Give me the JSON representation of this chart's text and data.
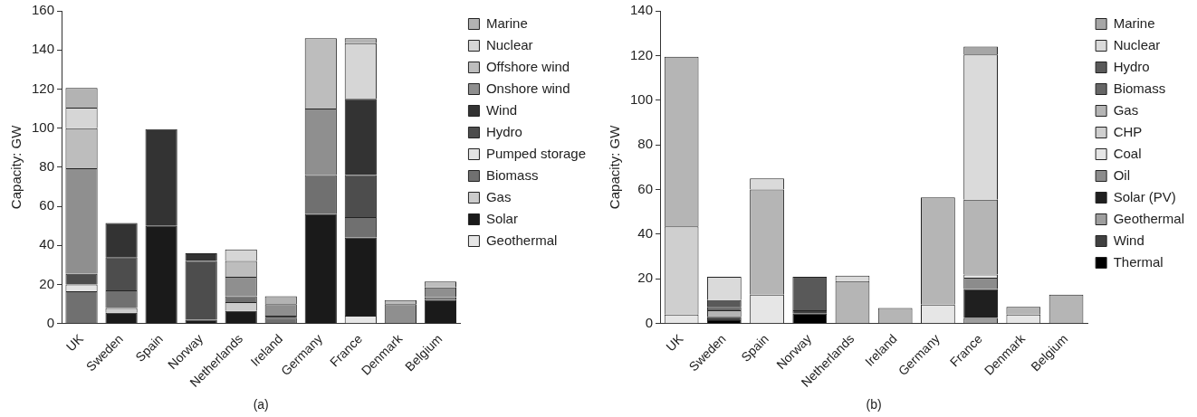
{
  "chart_data": [
    {
      "type": "bar",
      "ylabel": "Capacity: GW",
      "categories": [
        "UK",
        "Sweden",
        "Spain",
        "Norway",
        "Netherlands",
        "Ireland",
        "Germany",
        "France",
        "Denmark",
        "Belgium"
      ],
      "stacked": true,
      "ylim": [
        0,
        160
      ],
      "yticks": [
        0,
        20,
        40,
        60,
        80,
        100,
        120,
        140,
        160
      ],
      "grid": false,
      "legend": "right",
      "annotations": [
        "(a)"
      ],
      "series": [
        {
          "name": "Geothermal",
          "color": "#e6e6e6",
          "values": [
            null,
            null,
            null,
            null,
            null,
            null,
            null,
            4,
            null,
            null
          ]
        },
        {
          "name": "Solar",
          "color": "#1a1a1a",
          "values": [
            null,
            5.5,
            50,
            2,
            6.5,
            null,
            56,
            40,
            null,
            12
          ]
        },
        {
          "name": "Gas",
          "color": "#cccccc",
          "values": [
            null,
            2.5,
            null,
            null,
            4.5,
            null,
            null,
            null,
            null,
            null
          ]
        },
        {
          "name": "Biomass",
          "color": "#707070",
          "values": [
            16.5,
            9,
            null,
            null,
            3,
            3,
            20,
            10.5,
            null,
            1.5
          ]
        },
        {
          "name": "Pumped storage",
          "color": "#e3e3e3",
          "values": [
            3.5,
            null,
            null,
            null,
            null,
            null,
            null,
            null,
            null,
            null
          ]
        },
        {
          "name": "Hydro",
          "color": "#4d4d4d",
          "values": [
            5.5,
            17,
            null,
            30,
            null,
            1,
            null,
            21.5,
            null,
            null
          ]
        },
        {
          "name": "Wind",
          "color": "#333333",
          "values": [
            null,
            17.5,
            49.5,
            4,
            null,
            null,
            null,
            39,
            null,
            null
          ]
        },
        {
          "name": "Onshore wind",
          "color": "#8f8f8f",
          "values": [
            54,
            null,
            null,
            null,
            10,
            6,
            34,
            null,
            10,
            5
          ]
        },
        {
          "name": "Offshore wind",
          "color": "#bdbdbd",
          "values": [
            20.5,
            null,
            null,
            null,
            8,
            null,
            36,
            null,
            2,
            3
          ]
        },
        {
          "name": "Nuclear",
          "color": "#d6d6d6",
          "values": [
            10.5,
            null,
            null,
            null,
            6,
            null,
            null,
            28.5,
            null,
            null
          ]
        },
        {
          "name": "Marine",
          "color": "#b3b3b3",
          "values": [
            10,
            null,
            null,
            null,
            null,
            4,
            null,
            2.5,
            null,
            null
          ]
        }
      ]
    },
    {
      "type": "bar",
      "ylabel": "Capacity: GW",
      "categories": [
        "UK",
        "Sweden",
        "Spain",
        "Norway",
        "Netherlands",
        "Ireland",
        "Germany",
        "France",
        "Denmark",
        "Belgium"
      ],
      "stacked": true,
      "ylim": [
        0,
        140
      ],
      "yticks": [
        0,
        20,
        40,
        60,
        80,
        100,
        120,
        140
      ],
      "grid": false,
      "legend": "right",
      "annotations": [
        "(b)"
      ],
      "series": [
        {
          "name": "Thermal",
          "color": "#000000",
          "values": [
            null,
            1.5,
            null,
            4.5,
            null,
            null,
            null,
            null,
            null,
            null
          ]
        },
        {
          "name": "Wind",
          "color": "#404040",
          "values": [
            null,
            1.5,
            null,
            1.5,
            null,
            null,
            null,
            null,
            null,
            null
          ]
        },
        {
          "name": "Geothermal",
          "color": "#9e9e9e",
          "values": [
            null,
            null,
            null,
            null,
            null,
            null,
            null,
            2.5,
            null,
            null
          ]
        },
        {
          "name": "Solar (PV)",
          "color": "#1f1f1f",
          "values": [
            null,
            null,
            null,
            null,
            null,
            null,
            null,
            13,
            null,
            null
          ]
        },
        {
          "name": "Oil",
          "color": "#8c8c8c",
          "values": [
            null,
            null,
            null,
            null,
            null,
            null,
            null,
            5,
            null,
            null
          ]
        },
        {
          "name": "Coal",
          "color": "#e6e6e6",
          "values": [
            4,
            null,
            13,
            null,
            null,
            null,
            8.5,
            1.5,
            4,
            null
          ]
        },
        {
          "name": "CHP",
          "color": "#cfcfcf",
          "values": [
            39.5,
            null,
            null,
            null,
            null,
            null,
            null,
            null,
            null,
            null
          ]
        },
        {
          "name": "Gas",
          "color": "#b5b5b5",
          "values": [
            76,
            3,
            47,
            null,
            19,
            7,
            48,
            33.5,
            3.5,
            13
          ]
        },
        {
          "name": "Biomass",
          "color": "#666666",
          "values": [
            null,
            1.5,
            null,
            null,
            null,
            null,
            null,
            null,
            null,
            null
          ]
        },
        {
          "name": "Hydro",
          "color": "#595959",
          "values": [
            null,
            3,
            null,
            15,
            null,
            null,
            null,
            null,
            null,
            null
          ]
        },
        {
          "name": "Nuclear",
          "color": "#dadada",
          "values": [
            null,
            10.5,
            5,
            null,
            2.5,
            null,
            null,
            65,
            null,
            null
          ]
        },
        {
          "name": "Marine",
          "color": "#a6a6a6",
          "values": [
            null,
            null,
            null,
            null,
            null,
            null,
            null,
            3.5,
            null,
            null
          ]
        }
      ]
    }
  ]
}
